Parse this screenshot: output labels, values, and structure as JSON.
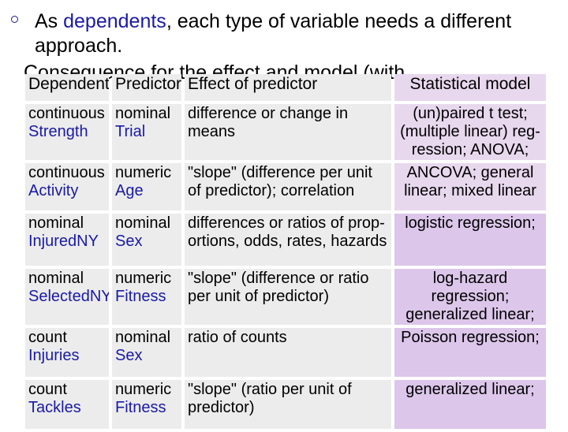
{
  "bullet": {
    "prefix": "As ",
    "accent": "dependents",
    "suffix": ", each type of variable needs a different approach."
  },
  "sub_bullet": "Consequence for the effect and model (with ...",
  "headers": {
    "dependent": "Dependent",
    "predictor": "Predictor",
    "effect": "Effect of predictor",
    "model": "Statistical model"
  },
  "rows": [
    {
      "dep_type": "continuous",
      "dep_example": "Strength",
      "pred_type": "nominal",
      "pred_example": "Trial",
      "effect": "difference or change in means",
      "model": "(un)paired t test; (multiple linear) reg-ression; ANOVA;"
    },
    {
      "dep_type": "continuous",
      "dep_example": "Activity",
      "pred_type": "numeric",
      "pred_example": "Age",
      "effect": "\"slope\" (difference per unit of predictor); correlation",
      "model": "ANCOVA; general linear; mixed linear"
    },
    {
      "dep_type": "nominal",
      "dep_example": "InjuredNY",
      "pred_type": "nominal",
      "pred_example": "Sex",
      "effect": "differences or ratios of prop-ortions, odds, rates, hazards",
      "model": "logistic regression;"
    },
    {
      "dep_type": "nominal",
      "dep_example": "SelectedNY",
      "pred_type": "numeric",
      "pred_example": "Fitness",
      "effect": "\"slope\" (difference or ratio per unit of predictor)",
      "model": "log-hazard regression; generalized linear;"
    },
    {
      "dep_type": "count",
      "dep_example": "Injuries",
      "pred_type": "nominal",
      "pred_example": "Sex",
      "effect": "ratio of counts",
      "model": "Poisson regression;"
    },
    {
      "dep_type": "count",
      "dep_example": "Tackles",
      "pred_type": "numeric",
      "pred_example": "Fitness",
      "effect": "\"slope\" (ratio per unit of predictor)",
      "model": "generalized linear;"
    }
  ]
}
